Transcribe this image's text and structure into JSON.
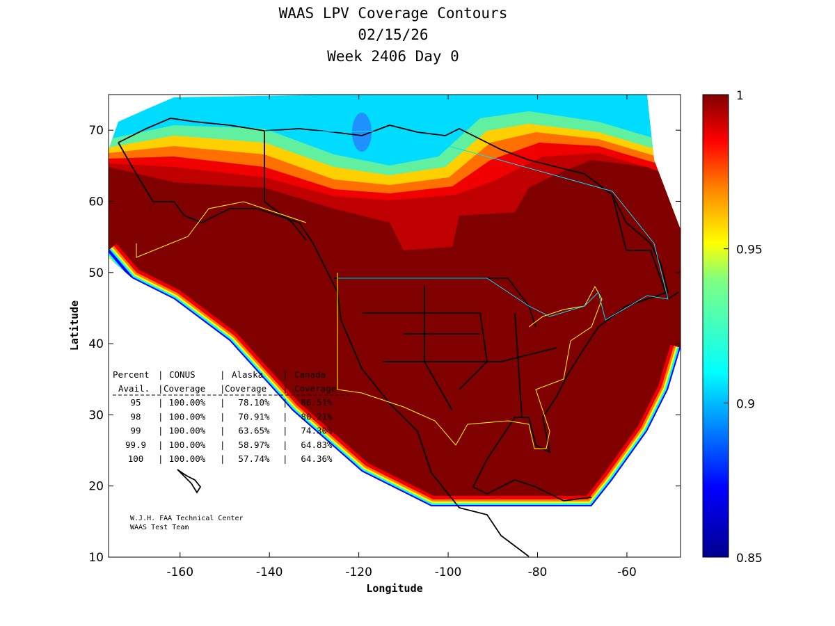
{
  "chart_data": {
    "type": "heatmap",
    "title": [
      "WAAS LPV Coverage Contours",
      "02/15/26",
      "Week 2406 Day 0"
    ],
    "xlabel": "Longitude",
    "ylabel": "Latitude",
    "xlim": [
      -176,
      -48
    ],
    "ylim": [
      10,
      75
    ],
    "xticks": [
      -160,
      -140,
      -120,
      -100,
      -80,
      -60
    ],
    "yticks": [
      10,
      20,
      30,
      40,
      50,
      60,
      70
    ],
    "colorbar": {
      "range": [
        0.85,
        1
      ],
      "ticks": [
        1,
        0.95,
        0.9,
        0.85
      ],
      "colormap": "jet"
    },
    "table": {
      "header1": [
        "Percent",
        "CONUS",
        "Alaska",
        "Canada"
      ],
      "header2": [
        "Avail.",
        "Coverage",
        "Coverage",
        "Coverage"
      ],
      "rows": [
        [
          "95",
          "100.00%",
          "78.10%",
          "86.51%"
        ],
        [
          "98",
          "100.00%",
          "70.91%",
          "80.21%"
        ],
        [
          "99",
          "100.00%",
          "63.65%",
          "74.30%"
        ],
        [
          "99.9",
          "100.00%",
          "58.97%",
          "64.83%"
        ],
        [
          "100",
          "100.00%",
          "57.74%",
          "64.36%"
        ]
      ]
    },
    "credits": [
      "W.J.H. FAA Technical Center",
      "WAAS Test Team"
    ]
  }
}
